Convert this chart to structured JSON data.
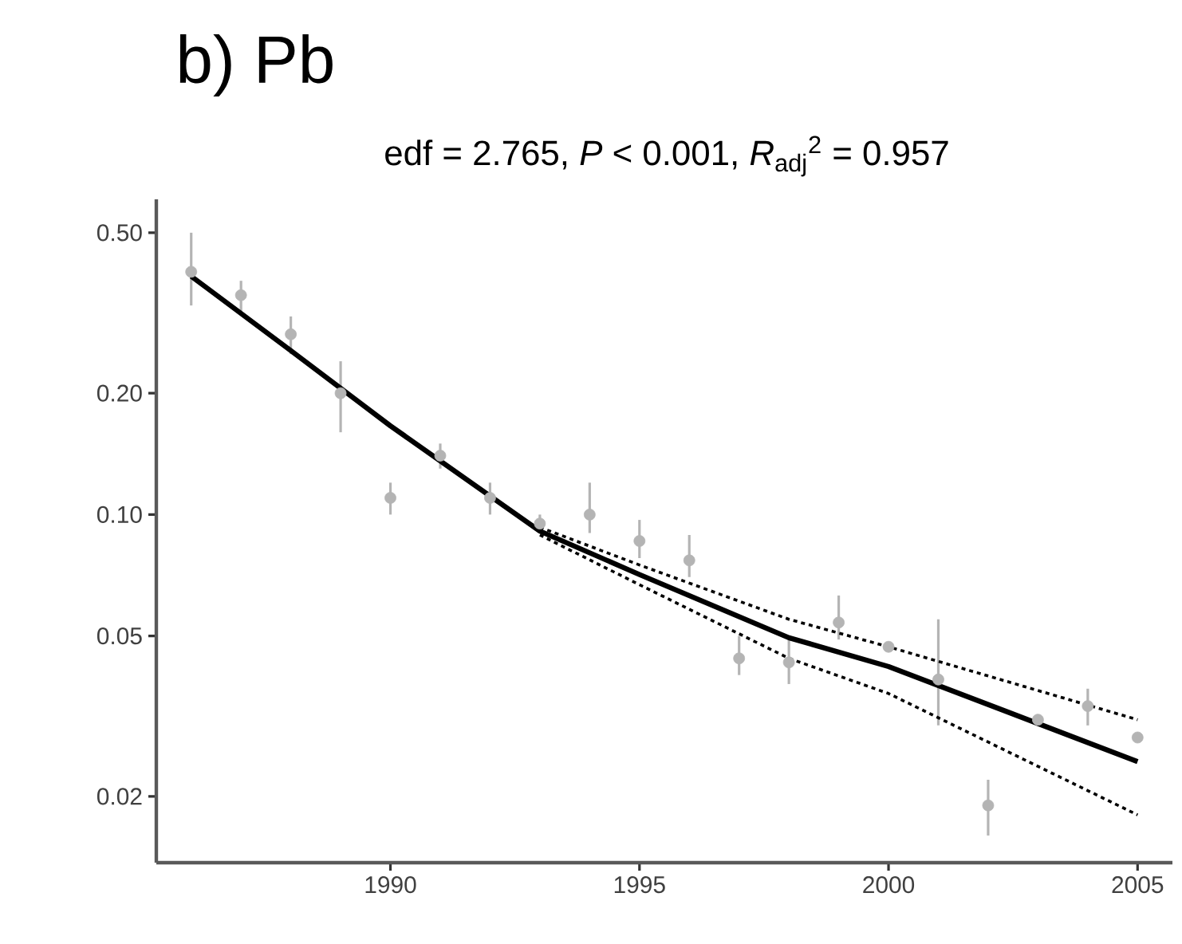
{
  "chart_data": {
    "type": "scatter",
    "title": "b) Pb",
    "subtitle": "edf = 2.765,  *P* < 0.001,  *R*$_{adj}$$^{2}$ = 0.957",
    "log": "y",
    "xlim": [
      1985.3,
      2005.7
    ],
    "ylim": [
      0.0137,
      0.605
    ],
    "xticks": [
      1990,
      1995,
      2000,
      2005
    ],
    "yticks": [
      {
        "value": 0.5,
        "label": "0.50"
      },
      {
        "value": 0.2,
        "label": "0.20"
      },
      {
        "value": 0.1,
        "label": "0.10"
      },
      0.05,
      0.02
    ],
    "series": [
      {
        "color": "#b4b4b4",
        "marker": "circle",
        "x": [
          1986,
          1987,
          1988,
          1989,
          1990,
          1991,
          1992,
          1993,
          1994,
          1995,
          1996,
          1997,
          1998,
          1999,
          2000,
          2001,
          2002,
          2003,
          2004,
          2005
        ],
        "values": [
          0.4,
          0.35,
          0.28,
          0.2,
          0.11,
          0.14,
          0.11,
          0.095,
          0.1,
          0.086,
          0.077,
          0.044,
          0.043,
          0.054,
          0.047,
          0.039,
          0.019,
          0.031,
          0.0335,
          0.028
        ],
        "errors": [
          [
            0.33,
            0.5
          ],
          [
            0.32,
            0.38
          ],
          [
            0.25,
            0.31
          ],
          [
            0.16,
            0.24
          ],
          [
            0.1,
            0.12
          ],
          [
            0.13,
            0.15
          ],
          [
            0.1,
            0.12
          ],
          [
            0.09,
            0.1
          ],
          [
            0.09,
            0.12
          ],
          [
            0.078,
            0.097
          ],
          [
            0.07,
            0.089
          ],
          [
            0.04,
            0.05
          ],
          [
            0.038,
            0.05
          ],
          [
            0.049,
            0.063
          ],
          null,
          [
            0.03,
            0.055
          ],
          [
            0.016,
            0.022
          ],
          null,
          [
            0.03,
            0.037
          ],
          null
        ]
      },
      {
        "type": "line",
        "color": "#000000",
        "line_style": "solid",
        "x": [
          1986,
          1988,
          1990,
          1993,
          1995,
          1998,
          2000,
          2005
        ],
        "values": [
          0.39,
          0.255,
          0.166,
          0.091,
          0.071,
          0.0495,
          0.042,
          0.0244
        ]
      },
      {
        "type": "line",
        "color": "#000000",
        "line_style": "dotted",
        "x": [
          1993,
          1995,
          1998,
          2000,
          2005
        ],
        "values": [
          0.093,
          0.075,
          0.055,
          0.047,
          0.031
        ]
      },
      {
        "type": "line",
        "color": "#000000",
        "line_style": "dotted",
        "x": [
          1993,
          1995,
          1998,
          2000,
          2005
        ],
        "values": [
          0.089,
          0.067,
          0.044,
          0.036,
          0.018
        ]
      }
    ]
  }
}
